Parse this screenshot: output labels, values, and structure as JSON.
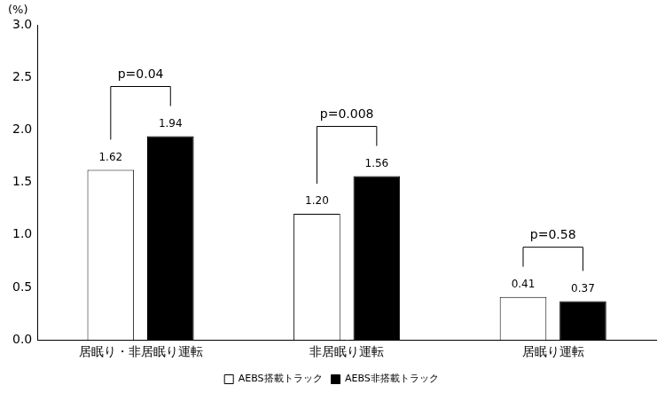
{
  "chart_data": {
    "type": "bar",
    "y_label": "(%)",
    "categories": [
      "居眠り・非居眠り運転",
      "非居眠り運転",
      "居眠り運転"
    ],
    "series": [
      {
        "name": "AEBS搭載トラック",
        "color": "#ffffff",
        "values": [
          1.62,
          1.2,
          0.41
        ],
        "value_labels": [
          "1.62",
          "1.20",
          "0.41"
        ]
      },
      {
        "name": "AEBS非搭載トラック",
        "color": "#000000",
        "values": [
          1.94,
          1.56,
          0.37
        ],
        "value_labels": [
          "1.94",
          "1.56",
          "0.37"
        ]
      }
    ],
    "ylim": [
      0,
      3
    ],
    "yticks": [
      {
        "value": 0,
        "label": "0.0"
      },
      {
        "value": 0.5,
        "label": "0.5"
      },
      {
        "value": 1,
        "label": "1.0"
      },
      {
        "value": 1.5,
        "label": "1.5"
      },
      {
        "value": 2,
        "label": "2.0"
      },
      {
        "value": 2.5,
        "label": "2.5"
      },
      {
        "value": 3,
        "label": "3.0"
      }
    ],
    "annotations": [
      {
        "category": "居眠り・非居眠り運転",
        "text": "p=0.04"
      },
      {
        "category": "非居眠り運転",
        "text": "p=0.008"
      },
      {
        "category": "居眠り運転",
        "text": "p=0.58"
      }
    ],
    "data_labels": true,
    "legend": "bottom",
    "grid": false
  }
}
